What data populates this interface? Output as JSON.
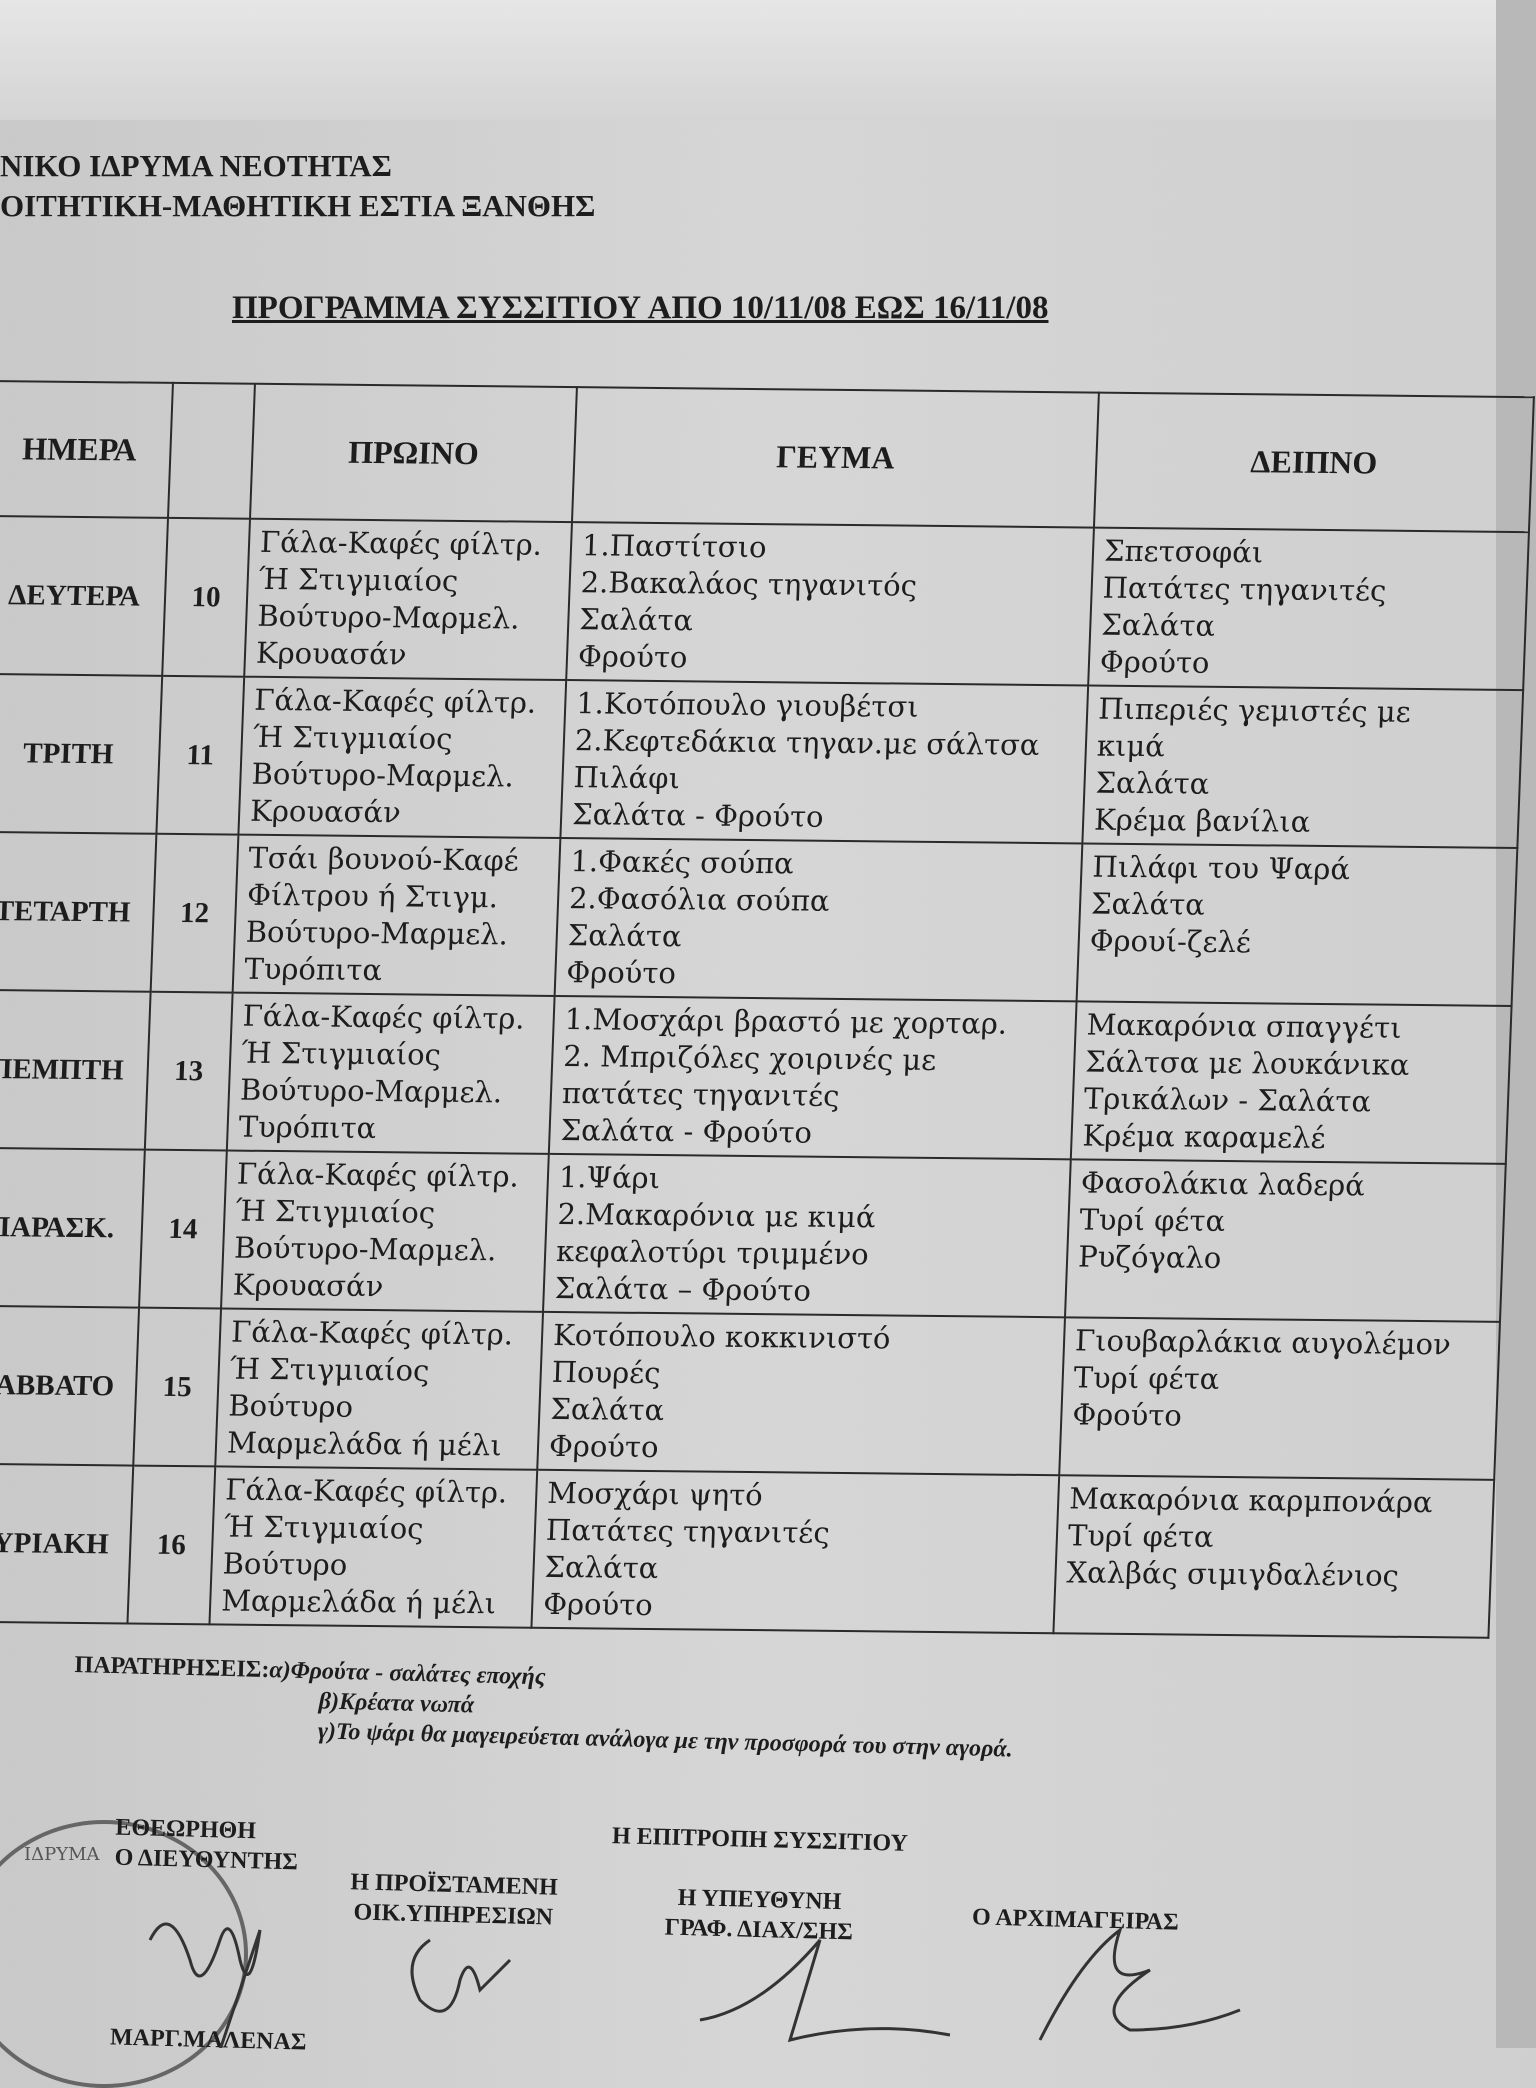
{
  "header": {
    "org_line1": "ΝΙΚΟ ΙΔΡΥΜΑ ΝΕΟΤΗΤΑΣ",
    "org_line2": "ΟΙΤΗΤΙΚΗ-ΜΑΘΗΤΙΚΗ ΕΣΤΙΑ ΞΑΝΘΗΣ",
    "title": "ΠΡΟΓΡΑΜΜΑ ΣΥΣΣΙΤΙΟΥ ΑΠΟ 10/11/08 ΕΩΣ 16/11/08"
  },
  "table": {
    "columns": [
      "ΗΜΕΡΑ",
      "",
      "ΠΡΩΙΝΟ",
      "ΓΕΥΜΑ",
      "ΔΕΙΠΝΟ"
    ],
    "rows": [
      {
        "day": "ΔΕΥΤΕΡΑ",
        "date": "10",
        "breakfast": [
          "Γάλα-Καφές φίλτρ.",
          "Ή Στιγμιαίος",
          "Βούτυρο-Μαρμελ.",
          "Κρουασάν"
        ],
        "lunch": [
          "1.Παστίτσιο",
          "2.Βακαλάος τηγανιτός",
          "Σαλάτα",
          "Φρούτο"
        ],
        "dinner": [
          "Σπετσοφάι",
          "Πατάτες τηγανιτές",
          "Σαλάτα",
          "Φρούτο"
        ]
      },
      {
        "day": "ΤΡΙΤΗ",
        "date": "11",
        "breakfast": [
          "Γάλα-Καφές φίλτρ.",
          "Ή Στιγμιαίος",
          "Βούτυρο-Μαρμελ.",
          "Κρουασάν"
        ],
        "lunch": [
          "1.Κοτόπουλο γιουβέτσι",
          "2.Κεφτεδάκια τηγαν.με σάλτσα",
          "Πιλάφι",
          "Σαλάτα - Φρούτο"
        ],
        "dinner": [
          "Πιπεριές γεμιστές με",
          "κιμά",
          "Σαλάτα",
          "Κρέμα βανίλια"
        ]
      },
      {
        "day": "ΤΕΤΑΡΤΗ",
        "date": "12",
        "breakfast": [
          "Τσάι βουνού-Καφέ",
          "Φίλτρου ή Στιγμ.",
          "Βούτυρο-Μαρμελ.",
          "Τυρόπιτα"
        ],
        "lunch": [
          "1.Φακές σούπα",
          "2.Φασόλια σούπα",
          "Σαλάτα",
          "Φρούτο"
        ],
        "dinner": [
          "Πιλάφι του Ψαρά",
          "Σαλάτα",
          "Φρουί-ζελέ"
        ]
      },
      {
        "day": "ΠΕΜΠΤΗ",
        "date": "13",
        "breakfast": [
          "Γάλα-Καφές φίλτρ.",
          "Ή Στιγμιαίος",
          "Βούτυρο-Μαρμελ.",
          "Τυρόπιτα"
        ],
        "lunch": [
          "1.Μοσχάρι βραστό με χορταρ.",
          "2. Μπριζόλες χοιρινές με",
          "πατάτες τηγανιτές",
          "Σαλάτα - Φρούτο"
        ],
        "dinner": [
          "Μακαρόνια σπαγγέτι",
          "Σάλτσα με λουκάνικα",
          "Τρικάλων - Σαλάτα",
          "Κρέμα καραμελέ"
        ]
      },
      {
        "day": "ΠΑΡΑΣΚ.",
        "date": "14",
        "breakfast": [
          "Γάλα-Καφές φίλτρ.",
          "Ή Στιγμιαίος",
          "Βούτυρο-Μαρμελ.",
          "Κρουασάν"
        ],
        "lunch": [
          "1.Ψάρι",
          "2.Μακαρόνια με κιμά",
          "κεφαλοτύρι τριμμένο",
          "Σαλάτα – Φρούτο"
        ],
        "dinner": [
          "Φασολάκια λαδερά",
          "Τυρί φέτα",
          "Ρυζόγαλο"
        ]
      },
      {
        "day": "ΣΑΒΒΑΤΟ",
        "date": "15",
        "breakfast": [
          "Γάλα-Καφές φίλτρ.",
          "Ή Στιγμιαίος",
          "Βούτυρο",
          "Μαρμελάδα ή μέλι"
        ],
        "lunch": [
          "Κοτόπουλο κοκκινιστό",
          "Πουρές",
          "Σαλάτα",
          "Φρούτο"
        ],
        "dinner": [
          "Γιουβαρλάκια αυγολέμον",
          "Τυρί φέτα",
          "Φρούτο"
        ]
      },
      {
        "day": "ΚΥΡΙΑΚΗ",
        "date": "16",
        "breakfast": [
          "Γάλα-Καφές φίλτρ.",
          "Ή Στιγμιαίος",
          "Βούτυρο",
          "Μαρμελάδα ή μέλι"
        ],
        "lunch": [
          "Μοσχάρι ψητό",
          "Πατάτες τηγανιτές",
          "Σαλάτα",
          "Φρούτο"
        ],
        "dinner": [
          "Μακαρόνια καρμπονάρα",
          "Τυρί φέτα",
          "Χαλβάς σιμιγδαλένιος"
        ]
      }
    ]
  },
  "notes": {
    "label": "ΠΑΡΑΤΗΡΗΣΕΙΣ:",
    "a": "α)Φρούτα - σαλάτες εποχής",
    "b": "β)Κρέατα νωπά",
    "c": "γ)Το ψάρι θα μαγειρεύεται ανάλογα με την προσφορά του  στην αγορά."
  },
  "signatures": {
    "approved": "ΕΘΕΩΡΗΘΗ",
    "director": "Ο ΔΙΕΥΘΥΝΤΗΣ",
    "committee": "Η ΕΠΙΤΡΟΠΗ ΣΥΣΣΙΤΙΟΥ",
    "head1": "Η ΠΡΟΪΣΤΑΜΕΝΗ",
    "head2": "ΟΙΚ.ΥΠΗΡΕΣΙΩΝ",
    "resp1": "Η ΥΠΕΥΘΥΝΗ",
    "resp2": "ΓΡΑΦ. ΔΙΑΧ/ΣΗΣ",
    "chef": "Ο ΑΡΧΙΜΑΓΕΙΡΑΣ",
    "footer": "ΜΑΡΓ.ΜΑΛΕΝΑΣ"
  },
  "stamp": {
    "text": "ΙΔΡΥΜΑ"
  }
}
